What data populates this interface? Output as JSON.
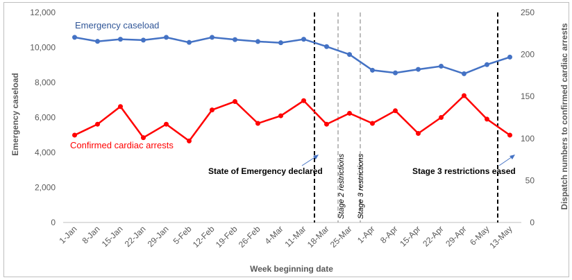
{
  "chart_data": {
    "type": "line",
    "xlabel": "Week beginning date",
    "ylabel_left": "Emergency caseload",
    "ylabel_right": "Dispatch numbers to confirmed cardiac arrests",
    "categories": [
      "1-Jan",
      "8-Jan",
      "15-Jan",
      "22-Jan",
      "29-Jan",
      "5-Feb",
      "12-Feb",
      "19-Feb",
      "26-Feb",
      "4-Mar",
      "11-Mar",
      "18-Mar",
      "25-Mar",
      "1-Apr",
      "8-Apr",
      "15-Apr",
      "22-Apr",
      "29-Apr",
      "6-May",
      "13-May"
    ],
    "ylim_left": [
      0,
      12000
    ],
    "yticks_left": [
      "0",
      "2,000",
      "4,000",
      "6,000",
      "8,000",
      "10,000",
      "12,000"
    ],
    "ylim_right": [
      0,
      250
    ],
    "yticks_right": [
      "0",
      "50",
      "100",
      "150",
      "200",
      "250"
    ],
    "series": [
      {
        "name": "Emergency caseload",
        "axis": "left",
        "color": "#4472c4",
        "values": [
          10580,
          10350,
          10470,
          10420,
          10580,
          10290,
          10580,
          10450,
          10340,
          10270,
          10470,
          10050,
          9600,
          8700,
          8550,
          8750,
          8930,
          8500,
          9020,
          9450
        ]
      },
      {
        "name": "Confirmed cardiac arrests",
        "axis": "right",
        "color": "#ff0000",
        "values": [
          104,
          117,
          138,
          101,
          117,
          97,
          134,
          144,
          118,
          127,
          145,
          117,
          130,
          118,
          133,
          106,
          125,
          151,
          123,
          104
        ]
      }
    ],
    "annotations": {
      "state_of_emergency": "State of Emergency declared",
      "stage2": "Stage 2 restrictions",
      "stage3": "Stage 3 restrictions",
      "stage3_eased": "Stage 3 restrictions eased"
    },
    "legend_placement": "inline labels",
    "grid": false
  }
}
